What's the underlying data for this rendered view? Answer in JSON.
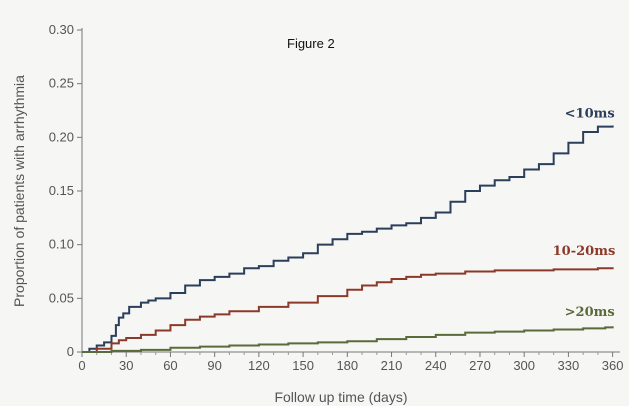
{
  "chart_data": {
    "type": "line",
    "title": "Figure 2",
    "xlabel": "Follow up time (days)",
    "ylabel": "Proportion of patients with arrhythmia",
    "xlim": [
      0,
      365
    ],
    "ylim": [
      0,
      0.3
    ],
    "xticks": [
      0,
      30,
      60,
      90,
      120,
      150,
      180,
      210,
      240,
      270,
      300,
      330,
      360
    ],
    "xtick_labels": [
      "0",
      "30",
      "60",
      "90",
      "120",
      "150",
      "180",
      "210",
      "240",
      "270",
      "300",
      "330",
      "360"
    ],
    "yticks": [
      0,
      0.05,
      0.1,
      0.15,
      0.2,
      0.25,
      0.3
    ],
    "ytick_labels": [
      "0",
      "0.05",
      "0.10",
      "0.15",
      "0.20",
      "0.25",
      "0.30"
    ],
    "grid": false,
    "series": [
      {
        "name": "<10ms",
        "color": "#2b3f5a",
        "x": [
          0,
          5,
          10,
          15,
          20,
          23,
          25,
          28,
          32,
          40,
          45,
          50,
          60,
          70,
          80,
          90,
          100,
          110,
          120,
          130,
          140,
          150,
          160,
          170,
          180,
          190,
          200,
          210,
          220,
          230,
          240,
          250,
          260,
          270,
          280,
          290,
          300,
          310,
          320,
          330,
          340,
          350,
          360
        ],
        "y": [
          0.0,
          0.003,
          0.006,
          0.009,
          0.015,
          0.025,
          0.032,
          0.036,
          0.042,
          0.046,
          0.048,
          0.05,
          0.055,
          0.062,
          0.067,
          0.07,
          0.073,
          0.078,
          0.08,
          0.085,
          0.088,
          0.092,
          0.1,
          0.105,
          0.11,
          0.112,
          0.115,
          0.118,
          0.12,
          0.125,
          0.13,
          0.14,
          0.15,
          0.155,
          0.16,
          0.163,
          0.17,
          0.175,
          0.185,
          0.195,
          0.205,
          0.21,
          0.211
        ]
      },
      {
        "name": "10-20ms",
        "color": "#8b3a2a",
        "x": [
          0,
          10,
          20,
          25,
          30,
          40,
          50,
          60,
          70,
          80,
          90,
          100,
          120,
          140,
          160,
          180,
          190,
          200,
          210,
          220,
          230,
          240,
          260,
          280,
          300,
          320,
          340,
          350,
          360
        ],
        "y": [
          0.0,
          0.003,
          0.008,
          0.011,
          0.013,
          0.016,
          0.02,
          0.025,
          0.03,
          0.033,
          0.035,
          0.038,
          0.042,
          0.046,
          0.052,
          0.058,
          0.062,
          0.065,
          0.068,
          0.07,
          0.072,
          0.073,
          0.075,
          0.076,
          0.076,
          0.077,
          0.077,
          0.078,
          0.079
        ]
      },
      {
        "name": ">20ms",
        "color": "#5a6a3a",
        "x": [
          0,
          20,
          40,
          60,
          80,
          100,
          120,
          140,
          160,
          180,
          200,
          220,
          240,
          260,
          280,
          300,
          320,
          340,
          355,
          360
        ],
        "y": [
          0.0,
          0.001,
          0.002,
          0.004,
          0.005,
          0.006,
          0.007,
          0.008,
          0.009,
          0.01,
          0.012,
          0.014,
          0.016,
          0.018,
          0.019,
          0.02,
          0.021,
          0.022,
          0.023,
          0.024
        ]
      }
    ]
  }
}
